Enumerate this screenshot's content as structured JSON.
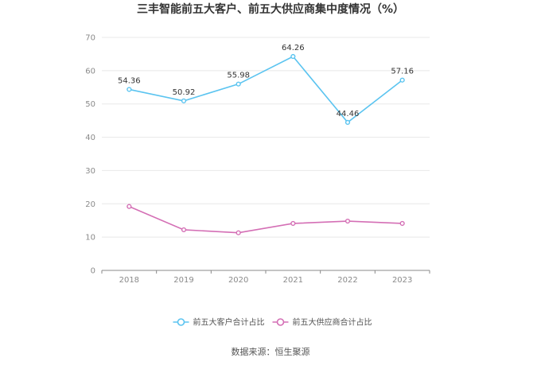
{
  "chart_data": {
    "type": "line",
    "title": "三丰智能前五大客户、前五大供应商集中度情况（%）",
    "categories": [
      "2018",
      "2019",
      "2020",
      "2021",
      "2022",
      "2023"
    ],
    "y_ticks": [
      "0",
      "10",
      "20",
      "30",
      "40",
      "50",
      "60",
      "70"
    ],
    "ylim": [
      0,
      70
    ],
    "grid": true,
    "legend_position": "bottom",
    "series": [
      {
        "name": "前五大客户合计占比",
        "color": "#5bc4f0",
        "values": [
          54.36,
          50.92,
          55.98,
          64.26,
          44.46,
          57.16
        ],
        "labels": [
          "54.36",
          "50.92",
          "55.98",
          "64.26",
          "44.46",
          "57.16"
        ]
      },
      {
        "name": "前五大供应商合计占比",
        "color": "#d46fb5",
        "values": [
          19.2,
          12.2,
          11.3,
          14.1,
          14.8,
          14.1
        ],
        "labels": []
      }
    ],
    "source": "数据来源：恒生聚源"
  }
}
